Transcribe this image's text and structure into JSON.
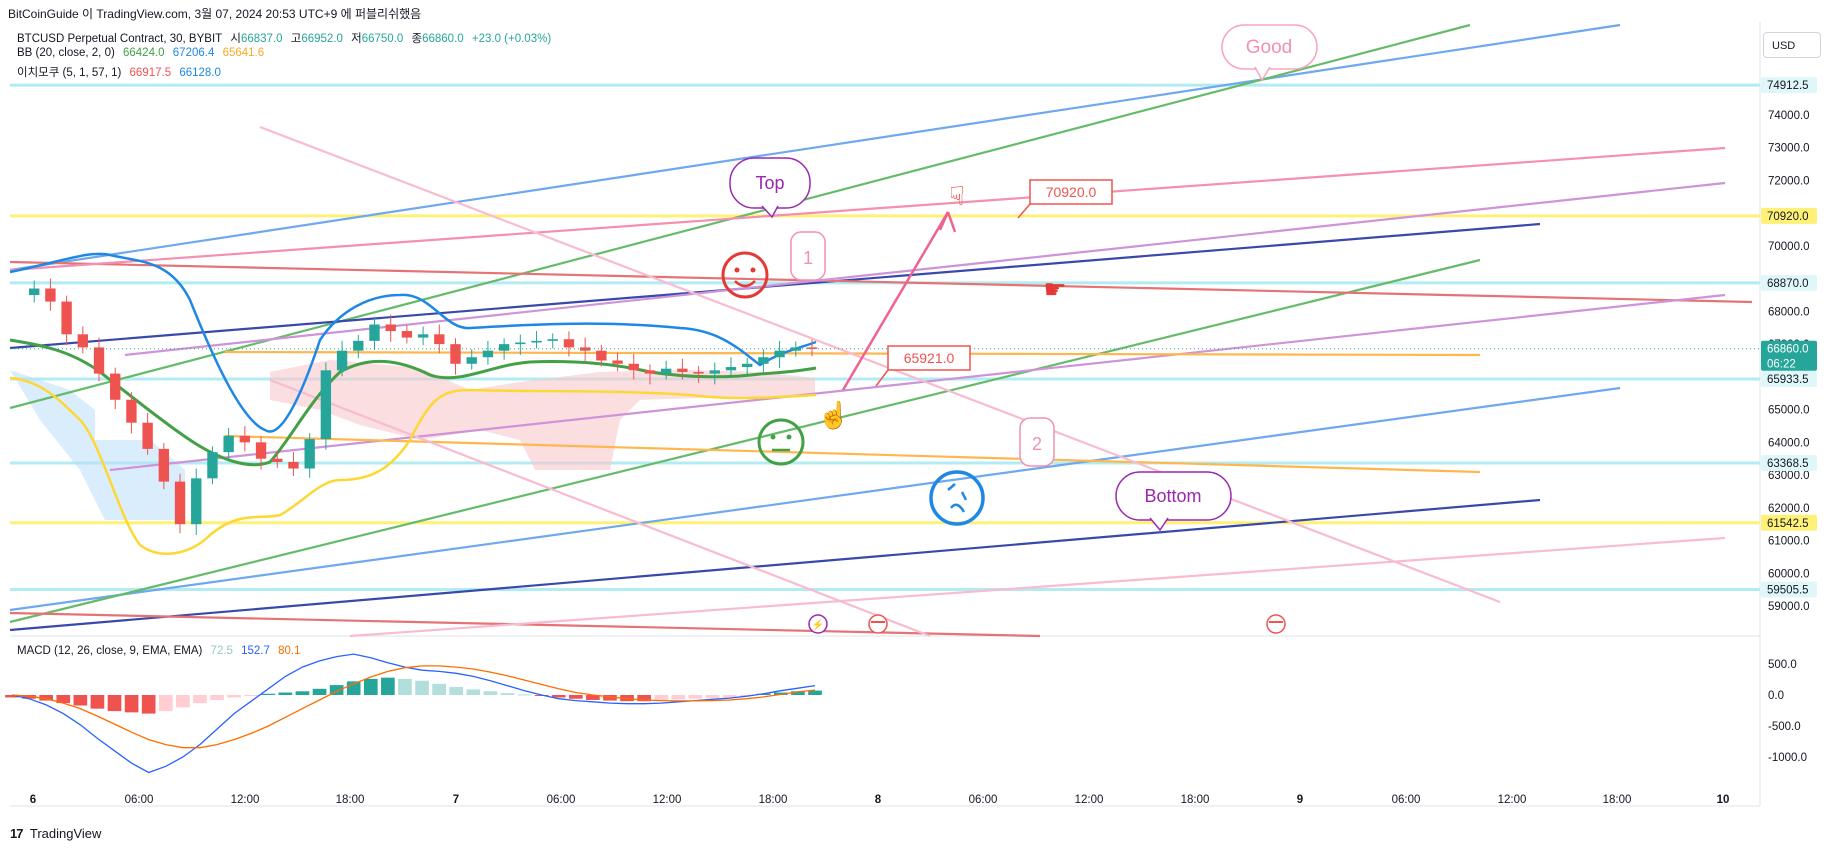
{
  "header": {
    "text": "BitCoinGuide 이 TradingView.com, 3월 07, 2024 20:53 UTC+9 에 퍼블리쉬했음"
  },
  "legend": {
    "symbol": "BTCUSD Perpetual Contract, 30, BYBIT",
    "ohlc": [
      {
        "label": "시",
        "value": "66837.0"
      },
      {
        "label": "고",
        "value": "66952.0"
      },
      {
        "label": "저",
        "value": "66750.0"
      },
      {
        "label": "종",
        "value": "66860.0"
      }
    ],
    "change": "+23.0 (+0.03%)",
    "bb": {
      "title": "BB (20, close, 2, 0)",
      "values": [
        {
          "value": "66424.0",
          "color": "#43a047"
        },
        {
          "value": "67206.4",
          "color": "#1e88e5"
        },
        {
          "value": "65641.6",
          "color": "#fdd835"
        }
      ]
    },
    "ichimoku": {
      "title": "이치모쿠 (5, 1, 57, 1)",
      "values": [
        {
          "value": "66917.5",
          "color": "#ef5350"
        },
        {
          "value": "66128.0",
          "color": "#1e88e5"
        }
      ]
    },
    "macd": {
      "title": "MACD (12, 26, close, 9, EMA, EMA)",
      "values": [
        {
          "value": "72.5",
          "color": "#93c8c8"
        },
        {
          "value": "152.7",
          "color": "#2962ff"
        },
        {
          "value": "80.1",
          "color": "#ff6d00"
        }
      ]
    }
  },
  "currency": "USD",
  "footer": {
    "logo": "17",
    "brand": "TradingView"
  },
  "colors": {
    "up": "#26a69a",
    "down": "#ef5350",
    "bb_mid": "#43a047",
    "bb_up": "#1e88e5",
    "bb_low": "#fdd835",
    "cloud": "#f8c8cc",
    "cloud_blue": "#bbdefb"
  },
  "chart_data": [
    {
      "type": "candlestick",
      "title": "BTCUSD Perpetual Contract, 30, BYBIT",
      "x_tick_labels": [
        "6",
        "06:00",
        "12:00",
        "18:00",
        "7",
        "06:00",
        "12:00",
        "18:00",
        "8",
        "06:00",
        "12:00",
        "18:00",
        "9",
        "06:00",
        "12:00",
        "18:00",
        "10"
      ],
      "y_tick_labels": [
        "74000.0",
        "73000.0",
        "72000.0",
        "70000.0",
        "68000.0",
        "67000.0",
        "65000.0",
        "64000.0",
        "63000.0",
        "62000.0",
        "61000.0",
        "60000.0",
        "59000.0"
      ],
      "ylim": [
        58800,
        75500
      ],
      "price_labels": [
        {
          "label": "74912.5",
          "value": 74912.5,
          "style": "cyan"
        },
        {
          "label": "70920.0",
          "value": 70920.0,
          "style": "yellow"
        },
        {
          "label": "68870.0",
          "value": 68870.0,
          "style": "cyan"
        },
        {
          "label": "66860.0",
          "sub": "06:22",
          "value": 66860.0,
          "style": "last"
        },
        {
          "label": "65933.5",
          "value": 65933.5,
          "style": "cyan"
        },
        {
          "label": "63368.5",
          "value": 63368.5,
          "style": "cyan"
        },
        {
          "label": "61542.5",
          "value": 61542.5,
          "style": "yellow"
        },
        {
          "label": "59505.5",
          "value": 59505.5,
          "style": "cyan"
        }
      ],
      "price_path_approx": [
        68500,
        68700,
        68300,
        67300,
        66900,
        66100,
        65300,
        64600,
        63800,
        62800,
        61500,
        62900,
        63700,
        64200,
        64000,
        63500,
        63400,
        63200,
        64100,
        66200,
        66800,
        67100,
        67600,
        67400,
        67200,
        67300,
        67000,
        66400,
        66600,
        66800,
        67000,
        67050,
        67100,
        67150,
        66900,
        66800,
        66500,
        66400,
        66200,
        66100,
        66250,
        66150,
        66100,
        66200,
        66300,
        66400,
        66600,
        66800,
        66900,
        66860
      ],
      "annotations": [
        "Good",
        "Top",
        "Bottom",
        "1",
        "2",
        "70920.0",
        "65921.0"
      ]
    },
    {
      "type": "bar",
      "title": "MACD (12, 26, close, 9, EMA, EMA)",
      "y_tick_labels": [
        "500.0",
        "0.0",
        "-500.0",
        "-1000.0"
      ],
      "ylim": [
        -1300,
        750
      ],
      "histogram_approx": [
        -40,
        -60,
        -90,
        -130,
        -170,
        -220,
        -260,
        -280,
        -300,
        -260,
        -200,
        -130,
        -80,
        -40,
        -10,
        20,
        40,
        60,
        100,
        160,
        220,
        260,
        280,
        260,
        230,
        180,
        130,
        90,
        60,
        30,
        10,
        -10,
        -40,
        -60,
        -80,
        -90,
        -100,
        -100,
        -80,
        -70,
        -60,
        -50,
        -40,
        -10,
        20,
        40,
        60,
        72
      ],
      "macd_approx": [
        0,
        -60,
        -160,
        -300,
        -480,
        -700,
        -900,
        -1100,
        -1250,
        -1150,
        -1000,
        -800,
        -550,
        -300,
        -100,
        100,
        300,
        450,
        550,
        620,
        660,
        600,
        520,
        450,
        400,
        380,
        350,
        300,
        230,
        150,
        70,
        0,
        -60,
        -90,
        -110,
        -130,
        -140,
        -140,
        -130,
        -110,
        -90,
        -70,
        -50,
        -20,
        20,
        70,
        110,
        152
      ],
      "signal_approx": [
        0,
        -20,
        -60,
        -130,
        -220,
        -340,
        -470,
        -600,
        -720,
        -800,
        -850,
        -850,
        -800,
        -720,
        -620,
        -500,
        -360,
        -220,
        -80,
        60,
        180,
        290,
        380,
        440,
        470,
        470,
        450,
        420,
        370,
        310,
        240,
        170,
        100,
        40,
        0,
        -30,
        -60,
        -80,
        -90,
        -95,
        -95,
        -90,
        -80,
        -60,
        -30,
        10,
        50,
        80
      ]
    }
  ]
}
